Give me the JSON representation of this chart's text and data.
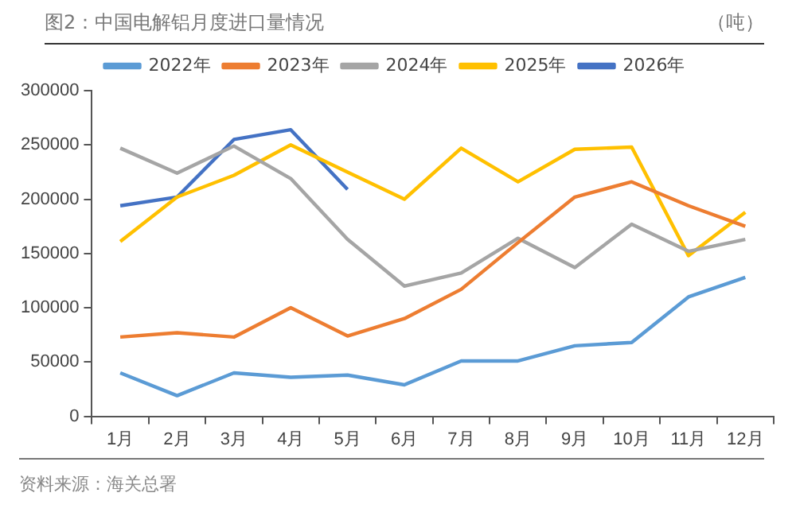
{
  "chart_data": {
    "type": "line",
    "title": "图2：中国电解铝月度进口量情况",
    "ylabel": "（吨）",
    "categories": [
      "1月",
      "2月",
      "3月",
      "4月",
      "5月",
      "6月",
      "7月",
      "8月",
      "9月",
      "10月",
      "11月",
      "12月"
    ],
    "series": [
      {
        "name": "2022年",
        "color": "#5b9bd5",
        "values": [
          40000,
          19000,
          40000,
          36000,
          38000,
          29000,
          51000,
          51000,
          65000,
          68000,
          110000,
          128000
        ]
      },
      {
        "name": "2023年",
        "color": "#ed7d31",
        "values": [
          73000,
          77000,
          73000,
          100000,
          74000,
          90000,
          117000,
          160000,
          202000,
          216000,
          194000,
          175000
        ]
      },
      {
        "name": "2024年",
        "color": "#a5a5a5",
        "values": [
          247000,
          224000,
          249000,
          219000,
          163000,
          120000,
          132000,
          164000,
          137000,
          177000,
          152000,
          163000
        ]
      },
      {
        "name": "2025年",
        "color": "#ffc000",
        "values": [
          161000,
          202000,
          222000,
          250000,
          225000,
          200000,
          247000,
          216000,
          246000,
          248000,
          148000,
          188000
        ]
      },
      {
        "name": "2026年",
        "color": "#4472c4",
        "values": [
          194000,
          202000,
          255000,
          264000,
          209000,
          null,
          null,
          null,
          null,
          null,
          null,
          null
        ]
      }
    ],
    "ylim": [
      0,
      300000
    ],
    "yticks": [
      0,
      50000,
      100000,
      150000,
      200000,
      250000,
      300000
    ],
    "grid": false,
    "legend": "top",
    "marker": "none",
    "line_style": "solid",
    "annotations": [
      "资料来源：海关总署"
    ]
  }
}
